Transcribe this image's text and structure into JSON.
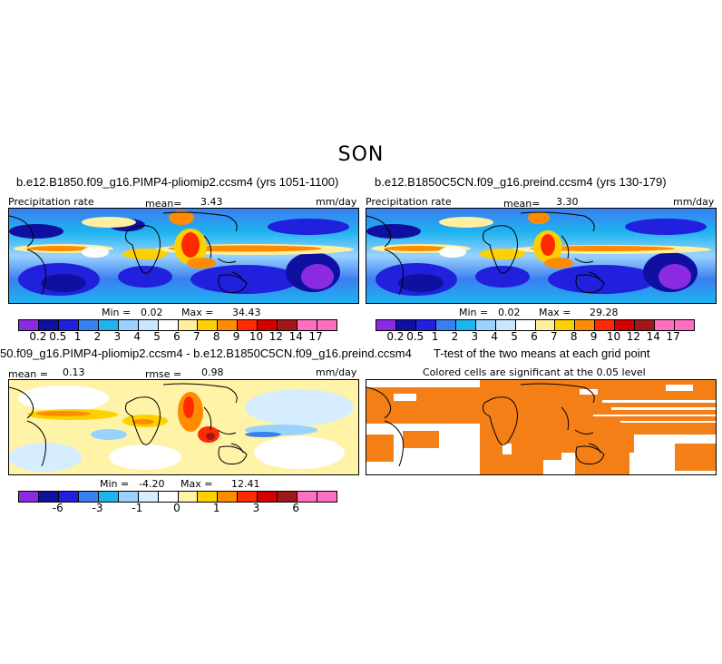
{
  "figure_title": "SON",
  "panels": {
    "top_left": {
      "title": "b.e12.B1850.f09_g16.PIMP4-pliomip2.ccsm4 (yrs 1051-1100)",
      "left_label": "Precipitation rate",
      "mean_label": "mean=",
      "mean_value": "3.43",
      "units": "mm/day",
      "min_label": "Min =",
      "min_value": "0.02",
      "max_label": "Max =",
      "max_value": "34.43"
    },
    "top_right": {
      "title": "b.e12.B1850C5CN.f09_g16.preind.ccsm4 (yrs 130-179)",
      "left_label": "Precipitation rate",
      "mean_label": "mean=",
      "mean_value": "3.30",
      "units": "mm/day",
      "min_label": "Min =",
      "min_value": "0.02",
      "max_label": "Max =",
      "max_value": "29.28"
    },
    "bottom_left": {
      "title": "50.f09_g16.PIMP4-pliomip2.ccsm4 - b.e12.B1850C5CN.f09_g16.preind.ccsm4",
      "mean_label": "mean =",
      "mean_value": "0.13",
      "rmse_label": "rmse =",
      "rmse_value": "0.98",
      "units": "mm/day",
      "min_label": "Min =",
      "min_value": "-4.20",
      "max_label": "Max =",
      "max_value": "12.41"
    },
    "bottom_right": {
      "title": "T-test of the two means at each grid point",
      "subtitle": "Colored cells are significant at the 0.05 level",
      "fill_color": "#f57f17"
    }
  },
  "colorbars": {
    "precip": {
      "labels": [
        "0.2",
        "0.5",
        "1",
        "2",
        "3",
        "4",
        "5",
        "6",
        "7",
        "8",
        "9",
        "10",
        "12",
        "14",
        "17"
      ],
      "colors": [
        "#8a2be2",
        "#1010a0",
        "#2020dd",
        "#3a7ff0",
        "#1eb4f0",
        "#9ad2ff",
        "#c9e6ff",
        "#ffffff",
        "#ffef9f",
        "#ffd000",
        "#ff8c00",
        "#ff2a00",
        "#d40000",
        "#a01818",
        "#ff6fc0"
      ]
    },
    "diff": {
      "labels": [
        "-6",
        "-3",
        "-1",
        "0",
        "1",
        "3",
        "6"
      ],
      "colors": [
        "#8a2be2",
        "#1010a0",
        "#2020dd",
        "#3a7ff0",
        "#1eb4f0",
        "#9ad2ff",
        "#d6ecff",
        "#ffffff",
        "#fff3a8",
        "#ffd000",
        "#ff8c00",
        "#ff2a00",
        "#d40000",
        "#a01818",
        "#ff6fc0"
      ]
    }
  }
}
